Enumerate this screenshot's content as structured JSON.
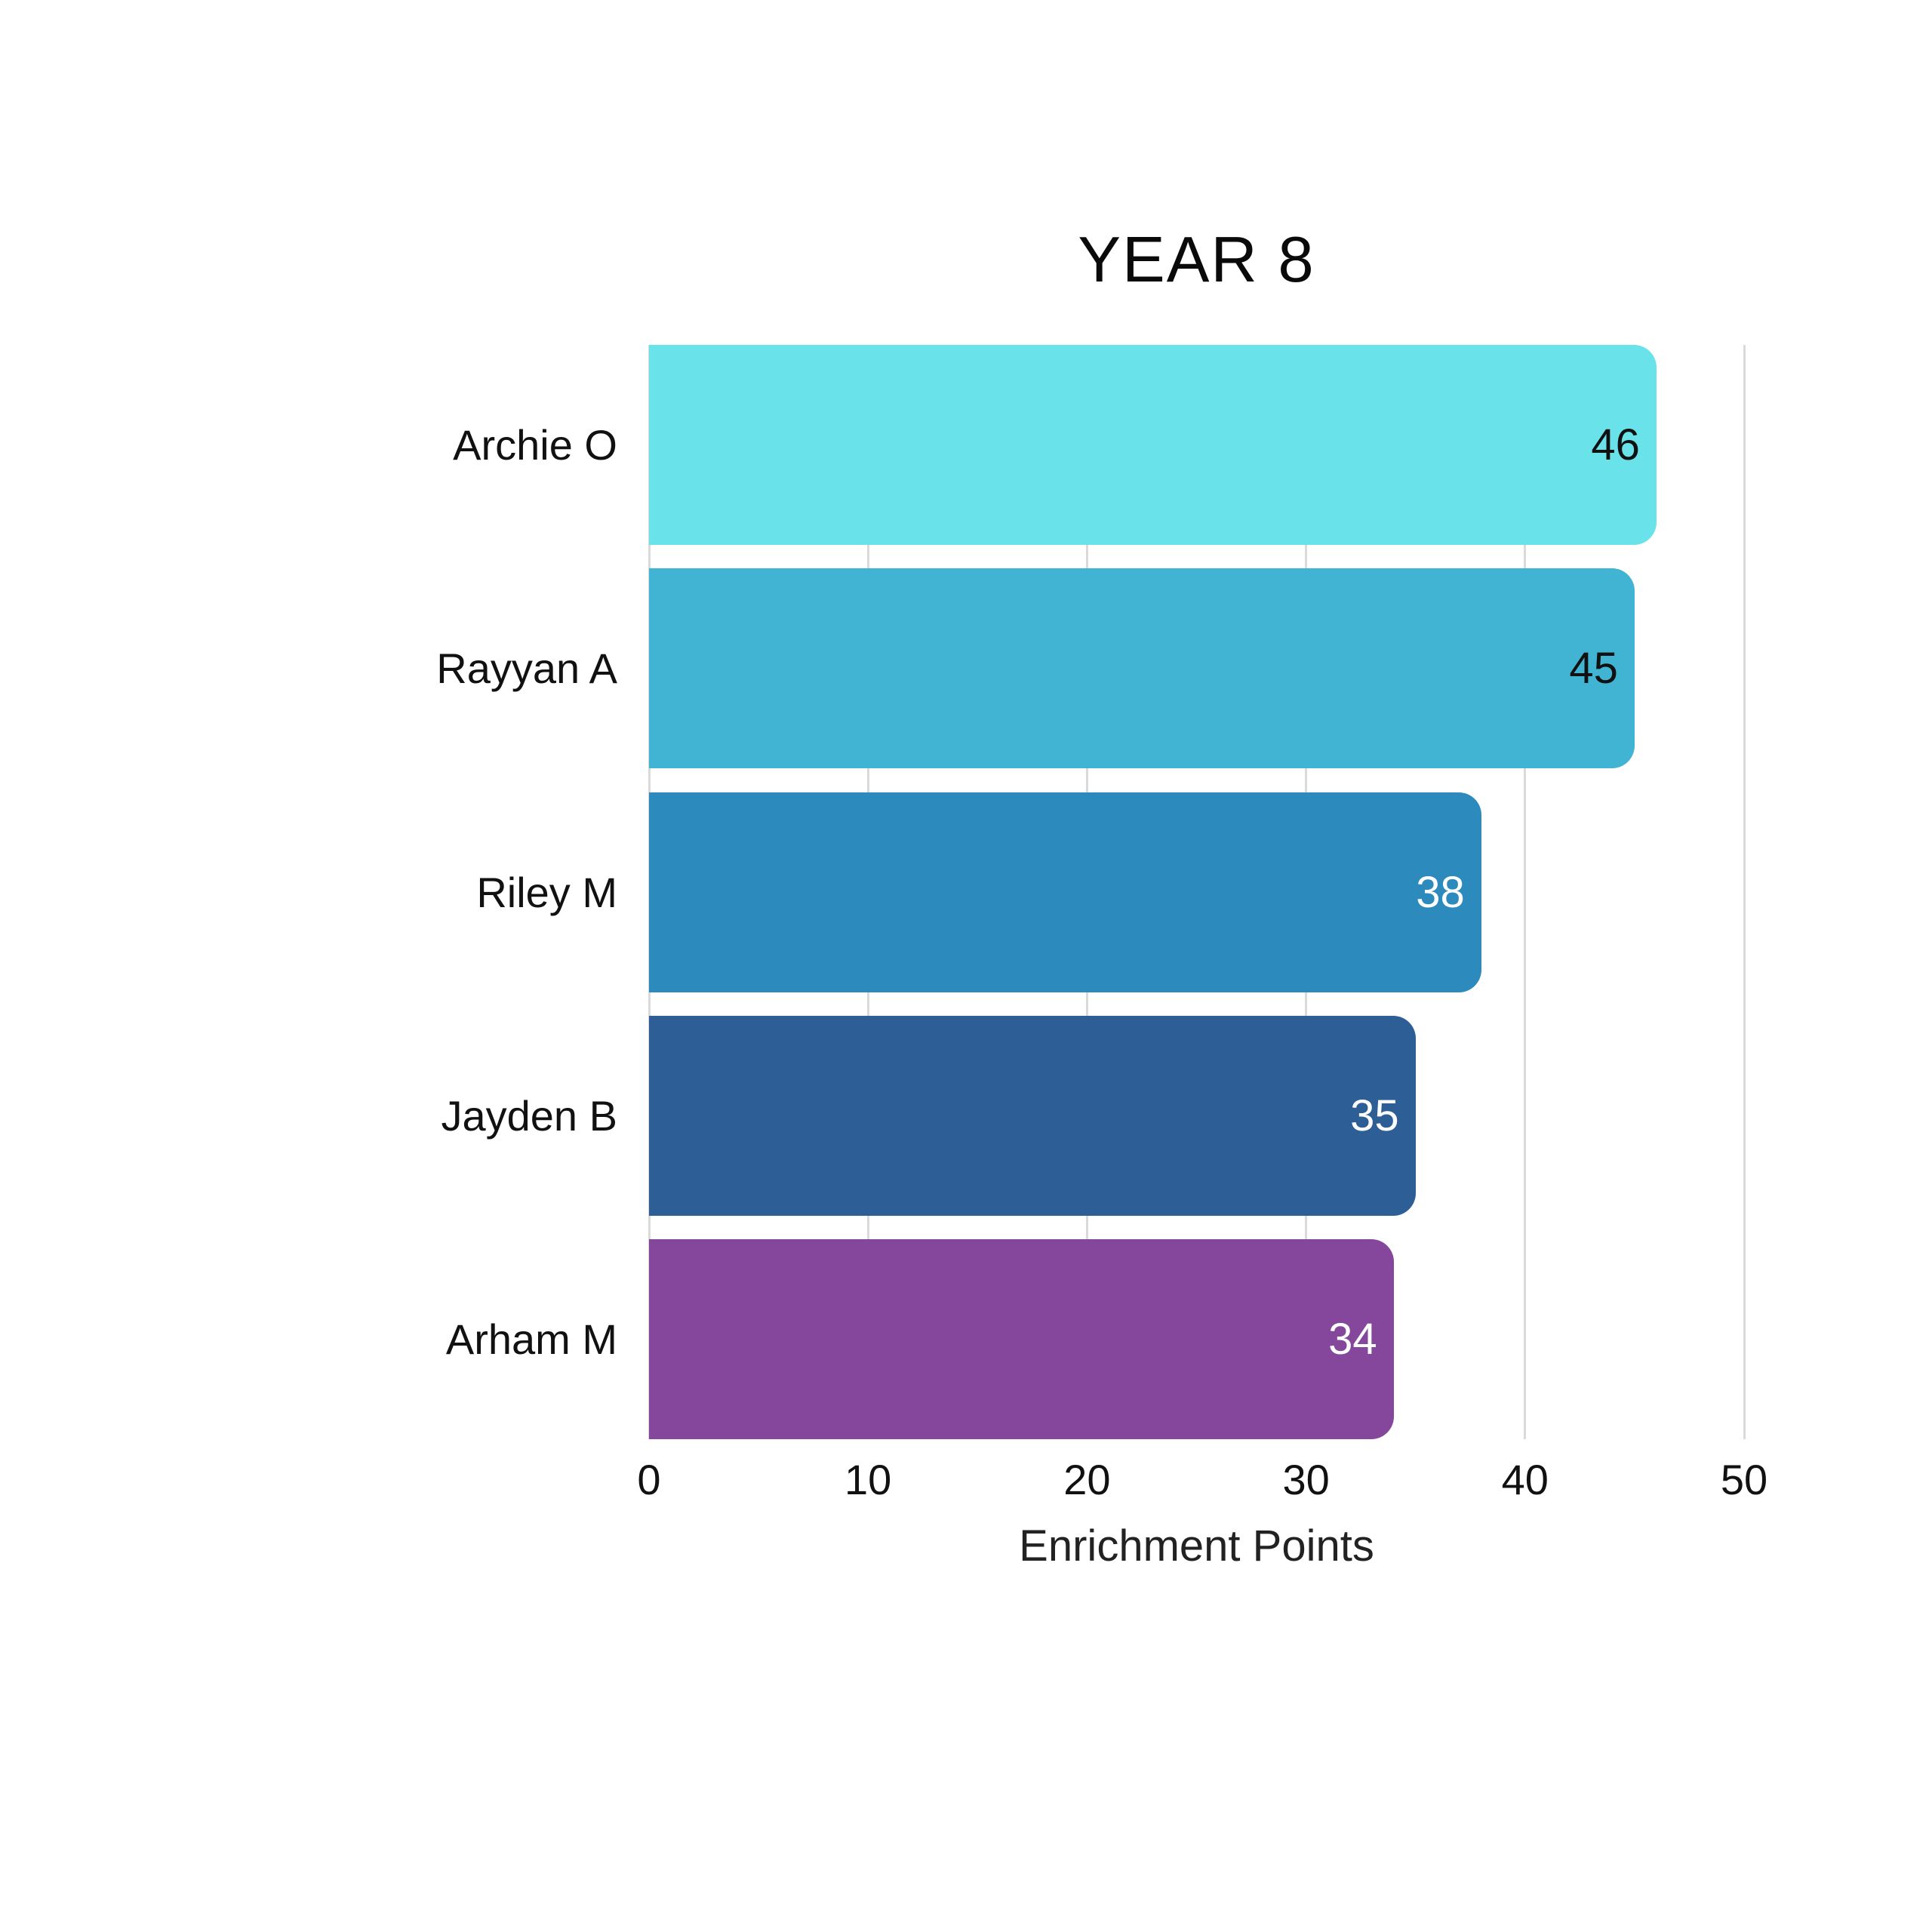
{
  "chart_data": {
    "type": "bar",
    "orientation": "horizontal",
    "title": "YEAR 8",
    "xlabel": "Enrichment Points",
    "categories": [
      "Archie O",
      "Rayyan A",
      "Riley M",
      "Jayden B",
      "Arham M"
    ],
    "values": [
      46,
      45,
      38,
      35,
      34
    ],
    "bar_colors": [
      "#69E3E9",
      "#41B4D3",
      "#2C8ABC",
      "#2E5E96",
      "#85479C"
    ],
    "value_label_colors": [
      "#111111",
      "#111111",
      "#FFFFFF",
      "#FFFFFF",
      "#FFFFFF"
    ],
    "xlim": [
      0,
      50
    ],
    "xticks": [
      0,
      10,
      20,
      30,
      40,
      50
    ],
    "grid": "vertical-gridlines-at-ticks",
    "gridline_color": "#DADADA",
    "background": "#FFFFFF",
    "legend": "none"
  }
}
